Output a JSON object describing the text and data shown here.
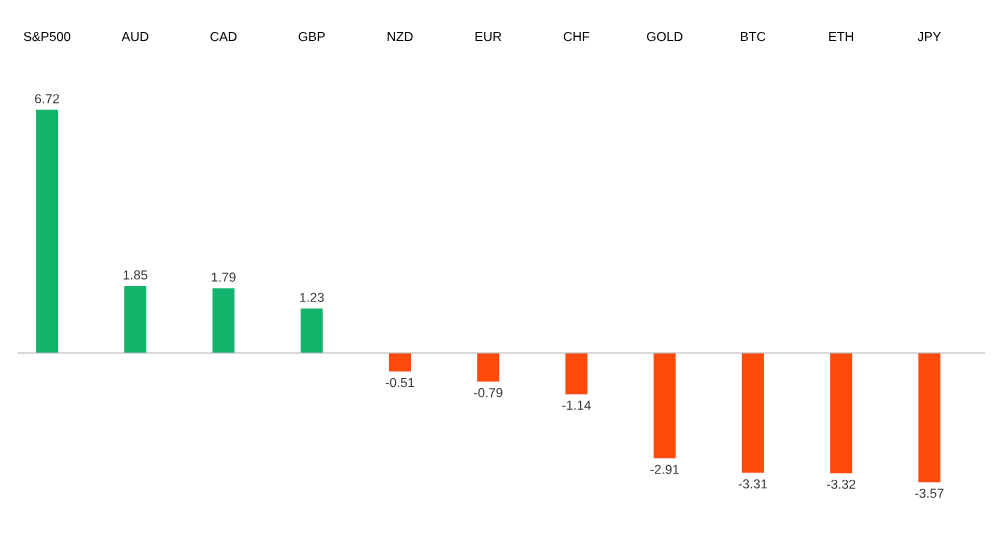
{
  "chart_data": {
    "type": "bar",
    "categories": [
      "S&P500",
      "AUD",
      "CAD",
      "GBP",
      "NZD",
      "EUR",
      "CHF",
      "GOLD",
      "BTC",
      "ETH",
      "JPY"
    ],
    "values": [
      6.72,
      1.85,
      1.79,
      1.23,
      -0.51,
      -0.79,
      -1.14,
      -2.91,
      -3.31,
      -3.32,
      -3.57
    ],
    "colors": [
      "#13b36c",
      "#13b36c",
      "#13b36c",
      "#13b36c",
      "#ff4a0a",
      "#ff4a0a",
      "#ff4a0a",
      "#ff4a0a",
      "#ff4a0a",
      "#ff4a0a",
      "#ff4a0a"
    ],
    "data_labels": true
  }
}
